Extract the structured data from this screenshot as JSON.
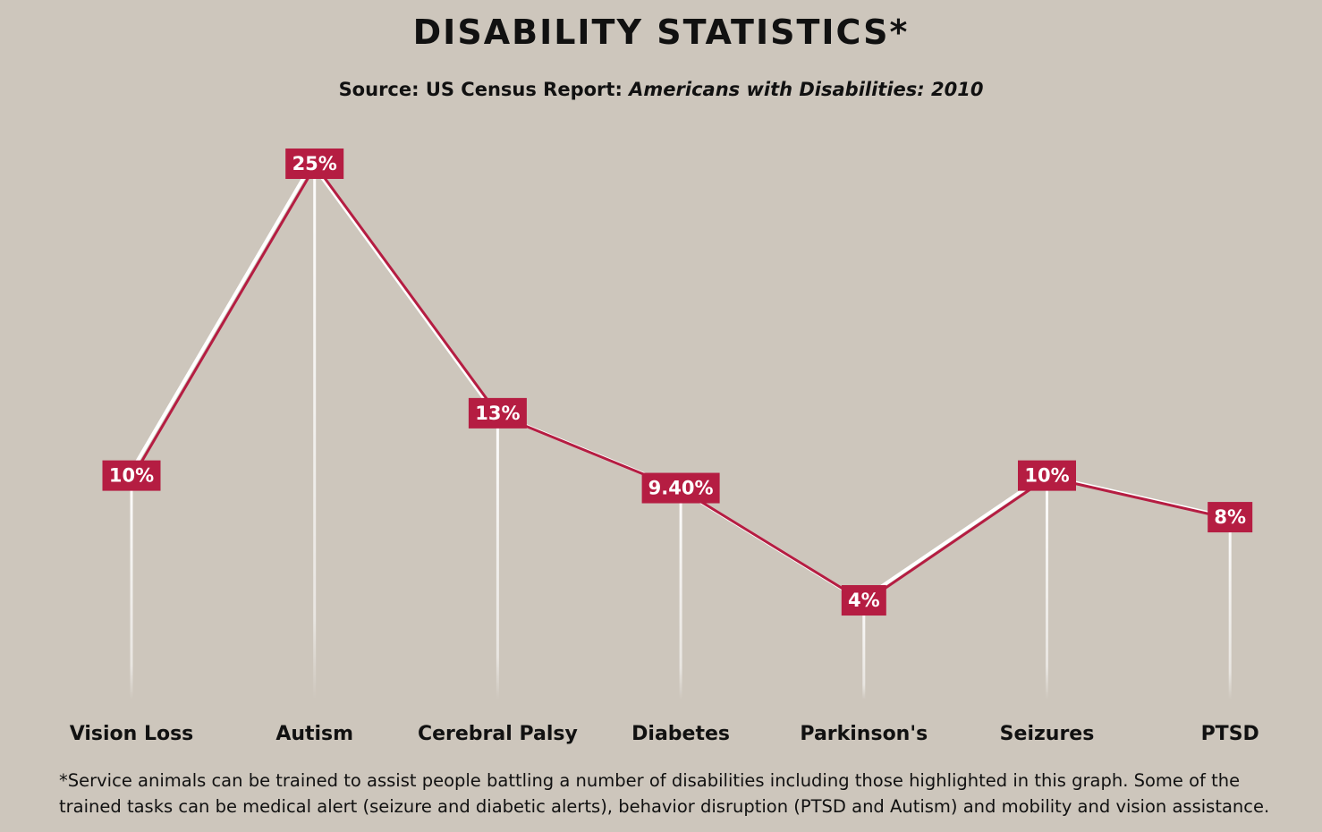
{
  "title": "DISABILITY STATISTICS*",
  "subtitle": {
    "prefix": "Source:  US Census Report: ",
    "italic": "Americans with Disabilities: 2010"
  },
  "footnote": "*Service animals can be trained to assist people battling a number of disabilities including those highlighted in this graph. Some of the trained tasks can be medical alert (seizure and diabetic alerts), behavior disruption (PTSD and Autism) and mobility and vision assistance.",
  "colors": {
    "background": "#cdc6bc",
    "accent": "#b51d42",
    "line_highlight": "#ffffff",
    "text": "#111111"
  },
  "chart_data": {
    "type": "line",
    "categories": [
      "Vision Loss",
      "Autism",
      "Cerebral Palsy",
      "Diabetes",
      "Parkinson's",
      "Seizures",
      "PTSD"
    ],
    "values": [
      10,
      25,
      13,
      9.4,
      4,
      10,
      8
    ],
    "data_labels": [
      "10%",
      "25%",
      "13%",
      "9.40%",
      "4%",
      "10%",
      "8%"
    ],
    "ylim": [
      0,
      25
    ],
    "grid": false,
    "legend": false
  }
}
